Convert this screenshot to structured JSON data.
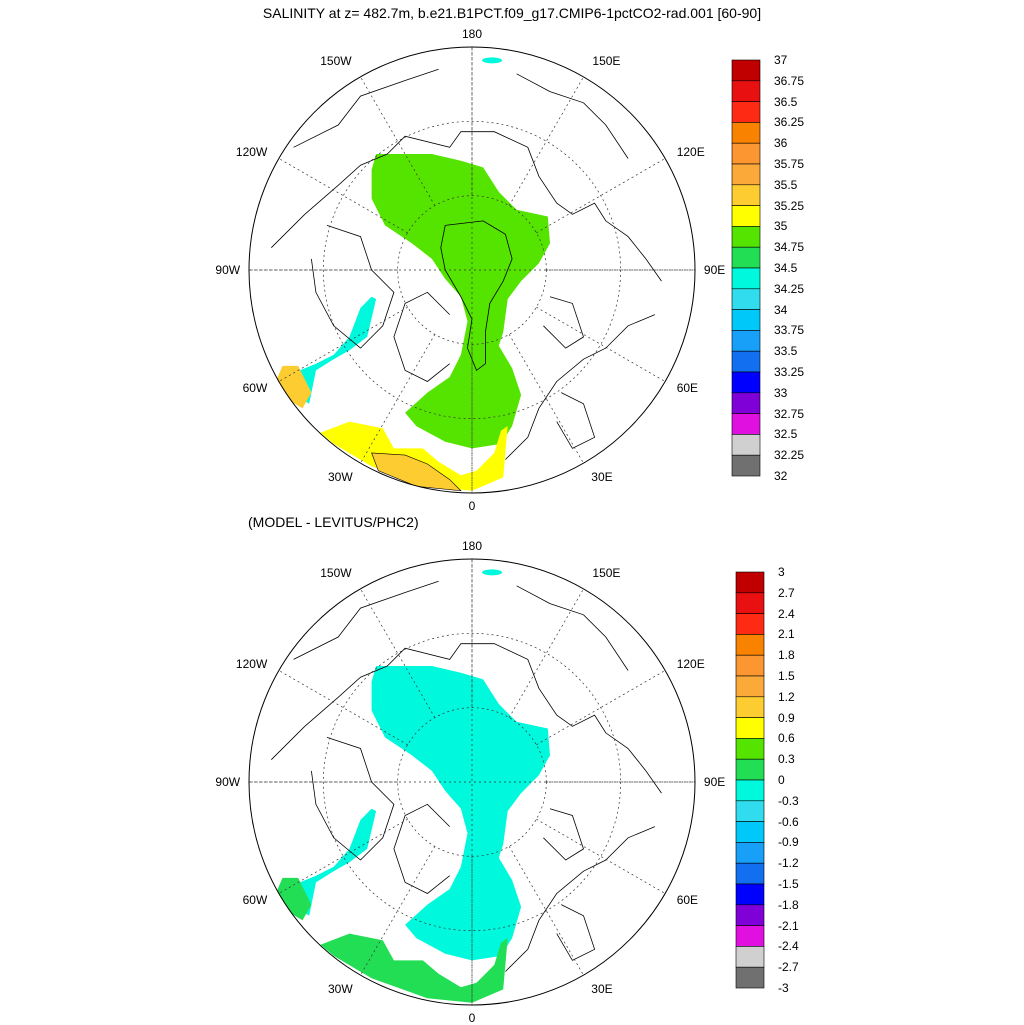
{
  "title": "SALINITY at z= 482.7m, b.e21.B1PCT.f09_g17.CMIP6-1pctCO2-rad.001 [60-90]",
  "diff_title": "(MODEL - LEVITUS/PHC2)",
  "panels": [
    {
      "name": "salinity",
      "lon_labels": {
        "n": "180",
        "s": "0",
        "w": "90W",
        "e": "90E",
        "nw": "150W",
        "ne": "150E",
        "wnw": "120W",
        "ene": "120E",
        "wsw": "60W",
        "ese": "60E",
        "sw": "30W",
        "se": "30E"
      },
      "colorbar": {
        "labels": [
          "37",
          "36.75",
          "36.5",
          "36.25",
          "36",
          "35.75",
          "35.5",
          "35.25",
          "35",
          "34.75",
          "34.5",
          "34.25",
          "34",
          "33.75",
          "33.5",
          "33.25",
          "33",
          "32.75",
          "32.5",
          "32.25",
          "32"
        ],
        "colors": [
          "#c00000",
          "#e81010",
          "#ff2a14",
          "#f98200",
          "#fb9630",
          "#fbaa3a",
          "#fccc30",
          "#ffff00",
          "#55e400",
          "#22de55",
          "#00f8dc",
          "#30dcee",
          "#00c8f8",
          "#18a0f8",
          "#1270f0",
          "#0000ff",
          "#8000d8",
          "#e010e0",
          "#d0d0d0",
          "#707070"
        ]
      },
      "fields": {
        "main_fill": "#55e400",
        "high_fill": "#55e400",
        "greenland_fill": "#00f8dc",
        "atlantic_fill": "#ffff00",
        "atlantic_deep": "#fccc30"
      }
    },
    {
      "name": "difference",
      "lon_labels": {
        "n": "180",
        "s": "0",
        "w": "90W",
        "e": "90E",
        "nw": "150W",
        "ne": "150E",
        "wnw": "120W",
        "ene": "120E",
        "wsw": "60W",
        "ese": "60E",
        "sw": "30W",
        "se": "30E"
      },
      "colorbar": {
        "labels": [
          "3",
          "2.7",
          "2.4",
          "2.1",
          "1.8",
          "1.5",
          "1.2",
          "0.9",
          "0.6",
          "0.3",
          "0",
          "-0.3",
          "-0.6",
          "-0.9",
          "-1.2",
          "-1.5",
          "-1.8",
          "-2.1",
          "-2.4",
          "-2.7",
          "-3"
        ],
        "colors": [
          "#c00000",
          "#e81010",
          "#ff2a14",
          "#f98200",
          "#fb9630",
          "#fbaa3a",
          "#fccc30",
          "#ffff00",
          "#55e400",
          "#22de55",
          "#00f8dc",
          "#30dcee",
          "#00c8f8",
          "#18a0f8",
          "#1270f0",
          "#0000ff",
          "#8000d8",
          "#e010e0",
          "#d0d0d0",
          "#707070"
        ]
      },
      "fields": {
        "main_fill": "#00f8dc",
        "greenland_fill": "#00f8dc",
        "atlantic_fill": "#22de55"
      }
    }
  ]
}
